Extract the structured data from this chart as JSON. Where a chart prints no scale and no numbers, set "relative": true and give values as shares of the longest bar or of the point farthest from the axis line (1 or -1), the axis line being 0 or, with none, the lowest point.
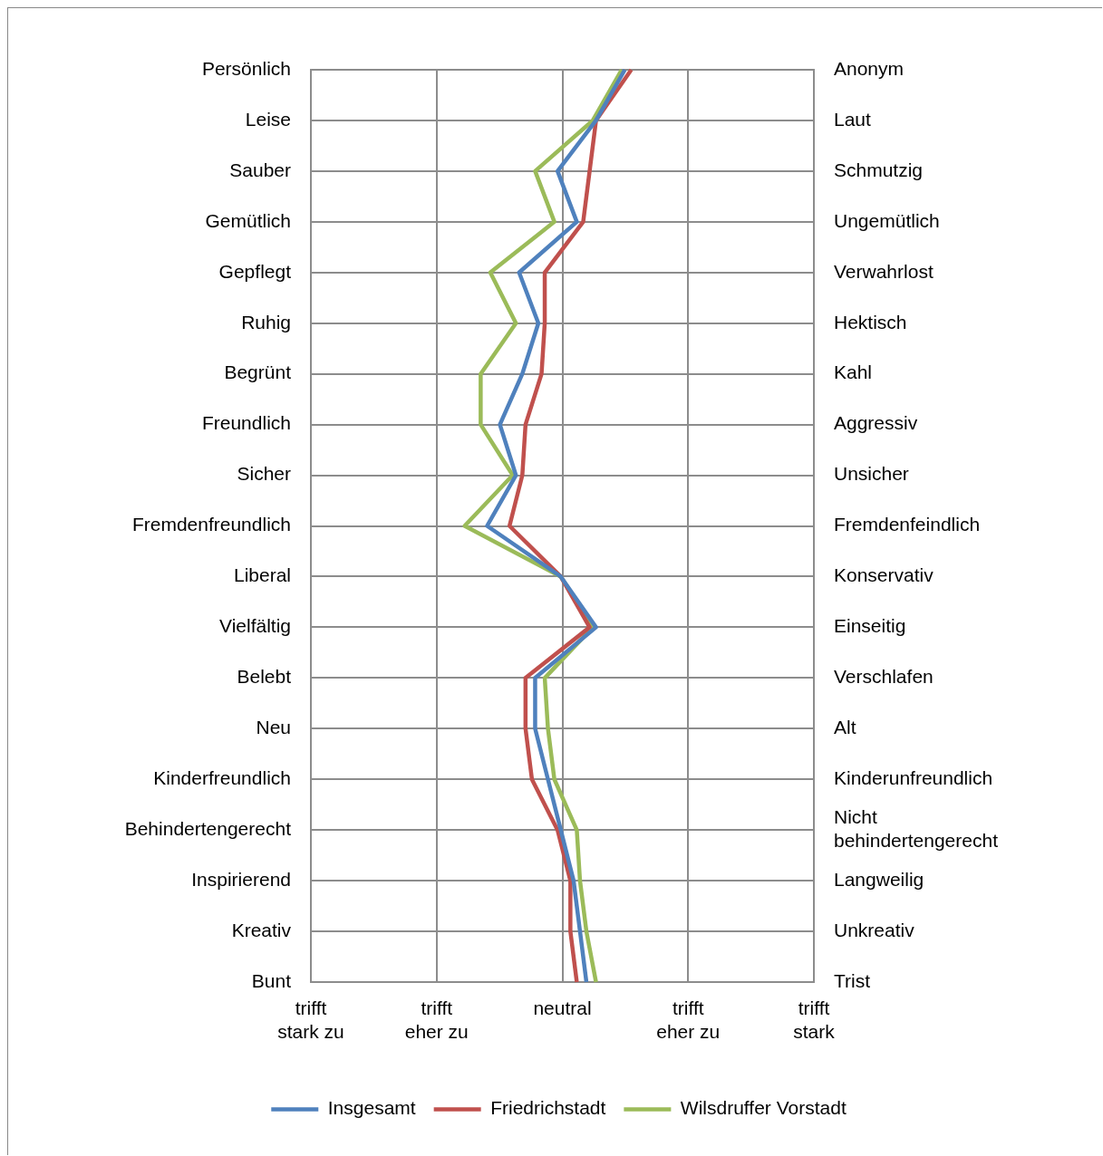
{
  "chart_data": {
    "type": "line",
    "orientation": "horizontal",
    "relative": true,
    "categories": [
      "Persönlich",
      "Leise",
      "Sauber",
      "Gemütlich",
      "Gepflegt",
      "Ruhig",
      "Begrünt",
      "Freundlich",
      "Sicher",
      "Fremdenfreundlich",
      "Liberal",
      "Vielfältig",
      "Belebt",
      "Neu",
      "Kinderfreundlich",
      "Behindertengerecht",
      "Inspirierend",
      "Kreativ",
      "Bunt"
    ],
    "y2_categories": [
      "Anonym",
      "Laut",
      "Schmutzig",
      "Ungemütlich",
      "Verwahrlost",
      "Hektisch",
      "Kahl",
      "Aggressiv",
      "Unsicher",
      "Fremdenfeindlich",
      "Konservativ",
      "Einseitig",
      "Verschlafen",
      "Alt",
      "Kinderunfreundlich",
      "Nicht behindertengerecht",
      "Langweilig",
      "Unkreativ",
      "Trist"
    ],
    "annotations": [
      "trifft stark zu",
      "trifft eher zu",
      "neutral",
      "trifft eher zu",
      "trifft stark"
    ],
    "series": [
      {
        "name": "Insgesamt",
        "color": "#4f81bd",
        "values": [
          0.98,
          0.89,
          0.77,
          0.83,
          0.65,
          0.71,
          0.66,
          0.59,
          0.64,
          0.55,
          0.78,
          0.89,
          0.7,
          0.7,
          0.74,
          0.78,
          0.82,
          0.84,
          0.86
        ]
      },
      {
        "name": "Friedrichstadt",
        "color": "#c0504d",
        "values": [
          1,
          0.89,
          0.87,
          0.85,
          0.73,
          0.73,
          0.72,
          0.67,
          0.66,
          0.62,
          0.78,
          0.87,
          0.67,
          0.67,
          0.69,
          0.77,
          0.81,
          0.81,
          0.83
        ]
      },
      {
        "name": "Wilsdruffer Vorstadt",
        "color": "#9bbb59",
        "values": [
          0.97,
          0.88,
          0.7,
          0.76,
          0.56,
          0.64,
          0.53,
          0.53,
          0.63,
          0.48,
          0.78,
          0.88,
          0.73,
          0.74,
          0.76,
          0.83,
          0.84,
          0.86,
          0.89
        ]
      }
    ],
    "grid": true,
    "legend": "bottom",
    "marker": "none"
  }
}
